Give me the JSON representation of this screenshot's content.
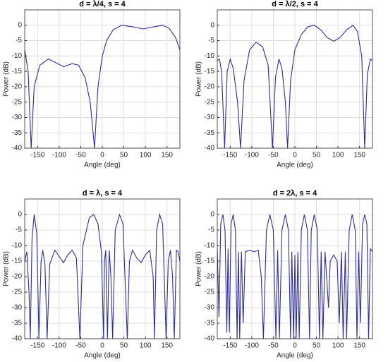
{
  "chart_data": [
    {
      "type": "line",
      "title": "d = λ/4, s = 4",
      "xlabel": "Angle (deg)",
      "ylabel": "Power (dB)",
      "color": "#2e2e9a",
      "grid": true,
      "xlim": [
        -180,
        180
      ],
      "xticks": [
        -150,
        -100,
        -50,
        0,
        50,
        100,
        150
      ],
      "ylim": [
        -40,
        5
      ],
      "yticks": [
        -40,
        -35,
        -30,
        -25,
        -20,
        -15,
        -10,
        -5,
        0
      ],
      "x": [
        -180,
        -172,
        -165,
        -158,
        -145,
        -125,
        -110,
        -90,
        -70,
        -55,
        -40,
        -28,
        -18,
        -10,
        0,
        10,
        25,
        45,
        70,
        95,
        120,
        140,
        155,
        170,
        180
      ],
      "values": [
        -8,
        -15,
        -40,
        -20,
        -13,
        -11,
        -12,
        -13.5,
        -12.5,
        -13,
        -17,
        -25,
        -40,
        -20,
        -10,
        -5,
        -1.5,
        0,
        -0.5,
        -1.2,
        -0.5,
        0,
        -1,
        -4,
        -8
      ]
    },
    {
      "type": "line",
      "title": "d = λ/2, s = 4",
      "xlabel": "Angle (deg)",
      "ylabel": "Power (dB)",
      "color": "#2e2e9a",
      "grid": true,
      "xlim": [
        -180,
        180
      ],
      "xticks": [
        -150,
        -100,
        -50,
        0,
        50,
        100,
        150
      ],
      "ylim": [
        -40,
        5
      ],
      "yticks": [
        -40,
        -35,
        -30,
        -25,
        -20,
        -15,
        -10,
        -5,
        0
      ],
      "x": [
        -180,
        -175,
        -170,
        -163,
        -157,
        -150,
        -143,
        -133,
        -126,
        -118,
        -105,
        -90,
        -75,
        -62,
        -52,
        -45,
        -37,
        -30,
        -22,
        -17,
        -10,
        0,
        15,
        30,
        45,
        60,
        75,
        90,
        105,
        120,
        135,
        145,
        155,
        162,
        168,
        175,
        180
      ],
      "values": [
        -11.5,
        -11,
        -15,
        -40,
        -15,
        -11,
        -14,
        -25,
        -40,
        -18,
        -8,
        -5.5,
        -7,
        -13,
        -40,
        -17,
        -11,
        -14,
        -25,
        -40,
        -18,
        -8,
        -3,
        -0.5,
        0,
        -1.5,
        -4,
        -5.2,
        -4,
        -1.5,
        0,
        -2,
        -10,
        -40,
        -16,
        -11,
        -11.5
      ]
    },
    {
      "type": "line",
      "title": "d = λ, s = 4",
      "xlabel": "Angle (deg)",
      "ylabel": "Power (dB)",
      "color": "#2e2e9a",
      "grid": true,
      "xlim": [
        -180,
        180
      ],
      "xticks": [
        -150,
        -100,
        -50,
        0,
        50,
        100,
        150
      ],
      "ylim": [
        -40,
        5
      ],
      "yticks": [
        -40,
        -35,
        -30,
        -25,
        -20,
        -15,
        -10,
        -5,
        0
      ],
      "x": [
        -180,
        -175,
        -170,
        -167,
        -163,
        -158,
        -152,
        -147,
        -142,
        -138,
        -133,
        -128,
        -122,
        -110,
        -100,
        -90,
        -80,
        -70,
        -60,
        -52,
        -45,
        -30,
        -20,
        -10,
        -2,
        3,
        5,
        8,
        12,
        16,
        20,
        24,
        30,
        40,
        48,
        58,
        63,
        70,
        80,
        90,
        100,
        110,
        118,
        121,
        126,
        133,
        140,
        148,
        153,
        158,
        163,
        167,
        172,
        176,
        180
      ],
      "values": [
        -15,
        -12,
        -25,
        -40,
        -8,
        0,
        -6,
        -40,
        -15,
        -11.5,
        -16,
        -40,
        -16,
        -11.5,
        -13.5,
        -15.5,
        -13,
        -11.5,
        -14,
        -40,
        -10,
        -1,
        0,
        -3,
        -12,
        -40,
        -15,
        -11.5,
        -40,
        -11.5,
        -20,
        -40,
        -5,
        0,
        -3,
        -40,
        -15,
        -11.5,
        -14,
        -15.5,
        -13,
        -11.5,
        -20,
        -40,
        -5,
        0,
        -3,
        -40,
        -15,
        -11.5,
        -20,
        -40,
        -11.5,
        -12,
        -15
      ]
    },
    {
      "type": "line",
      "title": "d = 2λ, s = 4",
      "xlabel": "Angle (deg)",
      "ylabel": "Power (dB)",
      "color": "#2e2e9a",
      "grid": true,
      "xlim": [
        -180,
        180
      ],
      "xticks": [
        -150,
        -100,
        -50,
        0,
        50,
        100,
        150
      ],
      "ylim": [
        -40,
        5
      ],
      "yticks": [
        -40,
        -35,
        -30,
        -25,
        -20,
        -15,
        -10,
        -5,
        0
      ],
      "x": [
        -180,
        -176,
        -172,
        -167,
        -162,
        -158,
        -155,
        -152,
        -148,
        -143,
        -138,
        -134,
        -131,
        -128,
        -124,
        -120,
        -115,
        -105,
        -95,
        -85,
        -78,
        -73,
        -66,
        -58,
        -50,
        -44,
        -40,
        -36,
        -30,
        -22,
        -15,
        -10,
        -7,
        -3,
        0,
        3,
        7,
        10,
        15,
        22,
        29,
        34,
        38,
        45,
        52,
        57,
        61,
        65,
        70,
        78,
        82,
        90,
        98,
        103,
        108,
        112,
        117,
        120,
        126,
        133,
        140,
        144,
        148,
        152,
        157,
        162,
        167,
        171,
        175,
        180
      ],
      "values": [
        -11,
        -33,
        -3,
        0,
        -5,
        -38,
        -11,
        -38,
        -3,
        0,
        -5,
        -40,
        -12,
        -40,
        -12,
        -35,
        -12,
        -11.5,
        -12,
        -11.5,
        -20,
        -40,
        -5,
        0,
        -5,
        -40,
        -11.5,
        -40,
        -5,
        0,
        -5,
        -40,
        -12,
        -40,
        -13,
        -40,
        -12,
        -40,
        -5,
        0,
        -5,
        -40,
        -5,
        0,
        -5,
        -40,
        -12,
        -40,
        -12,
        -30,
        -15,
        -13,
        -15,
        -35,
        -12,
        -40,
        -12,
        -40,
        -5,
        0,
        -5,
        -40,
        -12,
        -35,
        -3,
        0,
        -3,
        -40,
        -11,
        -12
      ]
    }
  ]
}
